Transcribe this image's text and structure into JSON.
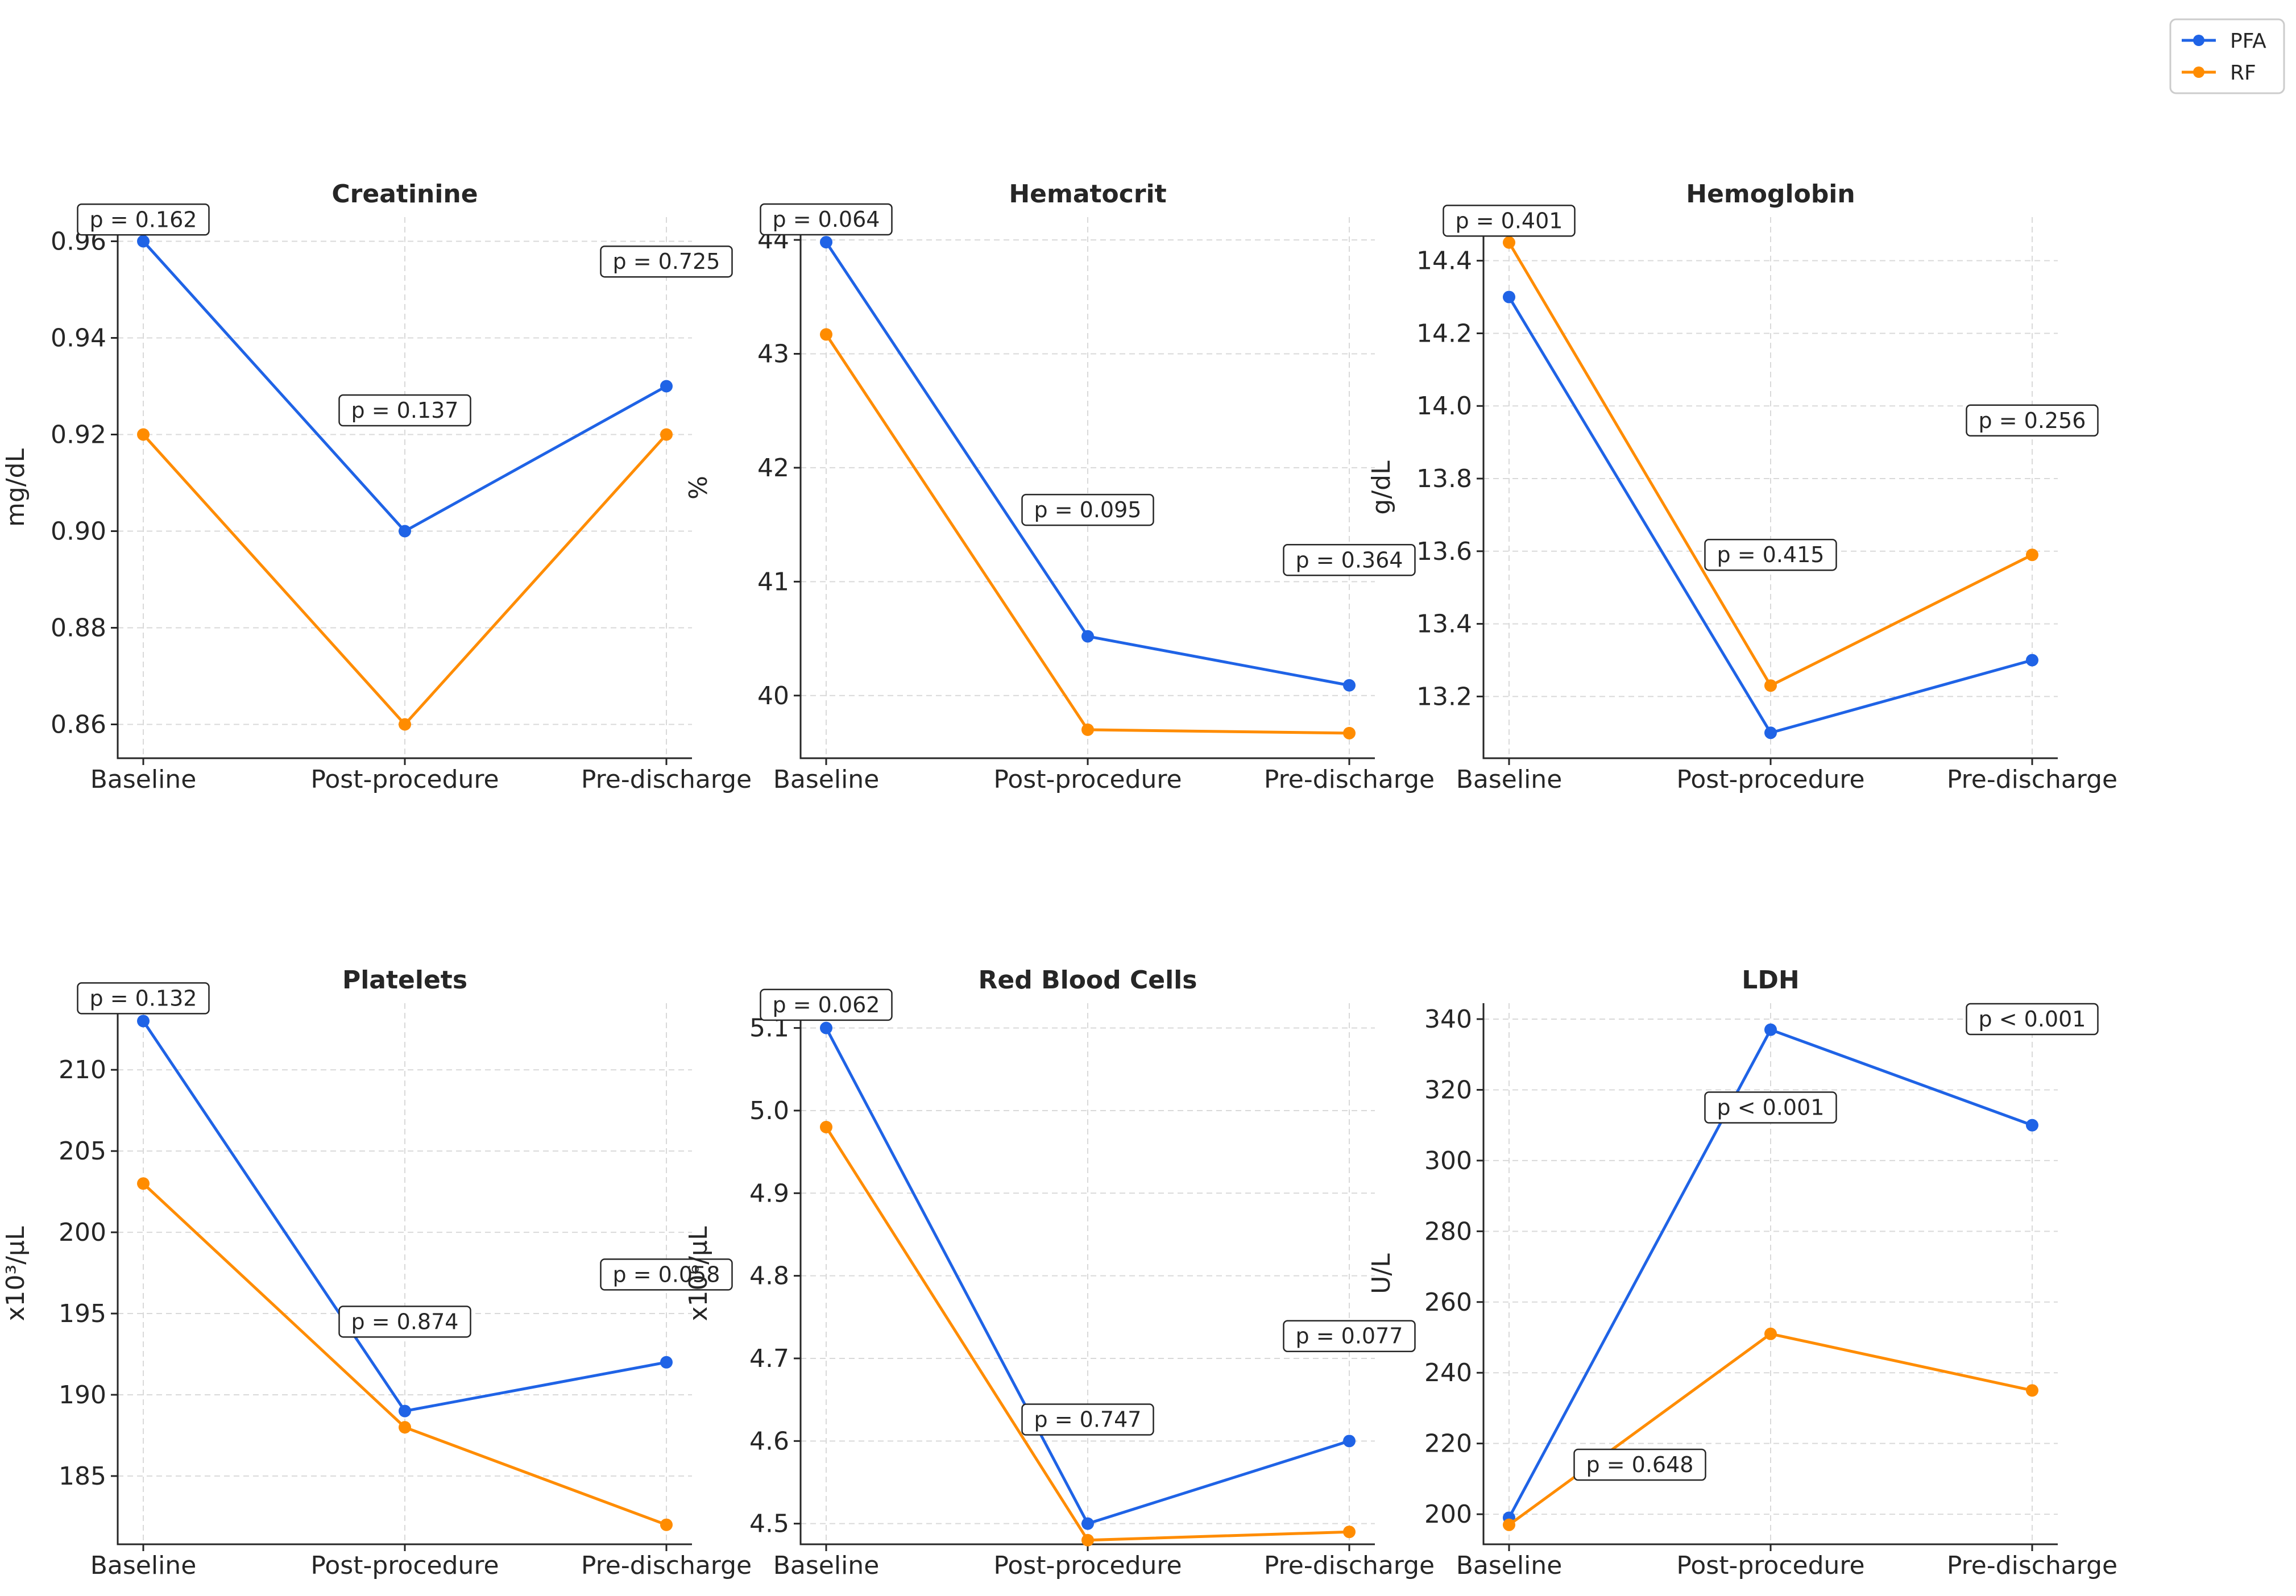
{
  "legend": {
    "placement": "top-right",
    "entries": [
      {
        "name": "PFA",
        "color": "#1f63e6"
      },
      {
        "name": "RF",
        "color": "#ff8c00"
      }
    ]
  },
  "colors": {
    "PFA": "#1f63e6",
    "RF": "#ff8c00"
  },
  "chart_data": [
    {
      "type": "line",
      "title": "Creatinine",
      "ylabel": "mg/dL",
      "xlabel": "",
      "categories": [
        "Baseline",
        "Post-procedure",
        "Pre-discharge"
      ],
      "ylim": [
        0.853,
        0.965
      ],
      "yticks": [
        0.86,
        0.88,
        0.9,
        0.92,
        0.94,
        0.96
      ],
      "ytick_labels": [
        "0.86",
        "0.88",
        "0.90",
        "0.92",
        "0.94",
        "0.96"
      ],
      "grid": true,
      "series": [
        {
          "name": "PFA",
          "values": [
            0.96,
            0.9,
            0.93
          ]
        },
        {
          "name": "RF",
          "values": [
            0.92,
            0.86,
            0.92
          ]
        }
      ],
      "annotations": [
        {
          "text": "p = 0.162",
          "x": 0,
          "y": 0.9645
        },
        {
          "text": "p = 0.137",
          "x": 1,
          "y": 0.925
        },
        {
          "text": "p = 0.725",
          "x": 2,
          "y": 0.9558
        }
      ]
    },
    {
      "type": "line",
      "title": "Hematocrit",
      "ylabel": "%",
      "xlabel": "",
      "categories": [
        "Baseline",
        "Post-procedure",
        "Pre-discharge"
      ],
      "ylim": [
        39.45,
        44.2
      ],
      "yticks": [
        40,
        41,
        42,
        43,
        44
      ],
      "ytick_labels": [
        "40",
        "41",
        "42",
        "43",
        "44"
      ],
      "grid": true,
      "series": [
        {
          "name": "PFA",
          "values": [
            43.98,
            40.52,
            40.09
          ]
        },
        {
          "name": "RF",
          "values": [
            43.17,
            39.7,
            39.67
          ]
        }
      ],
      "annotations": [
        {
          "text": "p = 0.064",
          "x": 0,
          "y": 44.18
        },
        {
          "text": "p = 0.095",
          "x": 1,
          "y": 41.63
        },
        {
          "text": "p = 0.364",
          "x": 2,
          "y": 41.19
        }
      ]
    },
    {
      "type": "line",
      "title": "Hemoglobin",
      "ylabel": "g/dL",
      "xlabel": "",
      "categories": [
        "Baseline",
        "Post-procedure",
        "Pre-discharge"
      ],
      "ylim": [
        13.03,
        14.52
      ],
      "yticks": [
        13.2,
        13.4,
        13.6,
        13.8,
        14.0,
        14.2,
        14.4
      ],
      "ytick_labels": [
        "13.2",
        "13.4",
        "13.6",
        "13.8",
        "14.0",
        "14.2",
        "14.4"
      ],
      "grid": true,
      "series": [
        {
          "name": "PFA",
          "values": [
            14.3,
            13.1,
            13.3
          ]
        },
        {
          "name": "RF",
          "values": [
            14.45,
            13.23,
            13.59
          ]
        }
      ],
      "annotations": [
        {
          "text": "p = 0.401",
          "x": 0,
          "y": 14.51
        },
        {
          "text": "p = 0.415",
          "x": 1,
          "y": 13.59
        },
        {
          "text": "p = 0.256",
          "x": 2,
          "y": 13.96
        }
      ]
    },
    {
      "type": "line",
      "title": "Platelets",
      "ylabel": "x10³/µL",
      "xlabel": "",
      "categories": [
        "Baseline",
        "Post-procedure",
        "Pre-discharge"
      ],
      "ylim": [
        180.8,
        214.1
      ],
      "yticks": [
        185,
        190,
        195,
        200,
        205,
        210
      ],
      "ytick_labels": [
        "185",
        "190",
        "195",
        "200",
        "205",
        "210"
      ],
      "grid": true,
      "series": [
        {
          "name": "PFA",
          "values": [
            213,
            189,
            192
          ]
        },
        {
          "name": "RF",
          "values": [
            203,
            188,
            182
          ]
        }
      ],
      "annotations": [
        {
          "text": "p = 0.132",
          "x": 0,
          "y": 214.4
        },
        {
          "text": "p = 0.874",
          "x": 1,
          "y": 194.5
        },
        {
          "text": "p = 0.058",
          "x": 2,
          "y": 197.4
        }
      ]
    },
    {
      "type": "line",
      "title": "Red Blood Cells",
      "ylabel": "x10⁶/µL",
      "xlabel": "",
      "categories": [
        "Baseline",
        "Post-procedure",
        "Pre-discharge"
      ],
      "ylim": [
        4.475,
        5.13
      ],
      "yticks": [
        4.5,
        4.6,
        4.7,
        4.8,
        4.9,
        5.0,
        5.1
      ],
      "ytick_labels": [
        "4.5",
        "4.6",
        "4.7",
        "4.8",
        "4.9",
        "5.0",
        "5.1"
      ],
      "grid": true,
      "series": [
        {
          "name": "PFA",
          "values": [
            5.1,
            4.5,
            4.6
          ]
        },
        {
          "name": "RF",
          "values": [
            4.98,
            4.48,
            4.49
          ]
        }
      ],
      "annotations": [
        {
          "text": "p = 0.062",
          "x": 0,
          "y": 5.128
        },
        {
          "text": "p = 0.747",
          "x": 1,
          "y": 4.626
        },
        {
          "text": "p = 0.077",
          "x": 2,
          "y": 4.727
        }
      ]
    },
    {
      "type": "line",
      "title": "LDH",
      "ylabel": "U/L",
      "xlabel": "",
      "categories": [
        "Baseline",
        "Post-procedure",
        "Pre-discharge"
      ],
      "ylim": [
        191.5,
        344.5
      ],
      "yticks": [
        200,
        220,
        240,
        260,
        280,
        300,
        320,
        340
      ],
      "ytick_labels": [
        "200",
        "220",
        "240",
        "260",
        "280",
        "300",
        "320",
        "340"
      ],
      "grid": true,
      "series": [
        {
          "name": "PFA",
          "values": [
            199,
            337,
            310
          ]
        },
        {
          "name": "RF",
          "values": [
            197,
            251,
            235
          ]
        }
      ],
      "annotations": [
        {
          "text": "p = 0.648",
          "x": 0.5,
          "y": 214
        },
        {
          "text": "p < 0.001",
          "x": 1,
          "y": 315
        },
        {
          "text": "p < 0.001",
          "x": 2,
          "y": 340
        }
      ]
    }
  ]
}
